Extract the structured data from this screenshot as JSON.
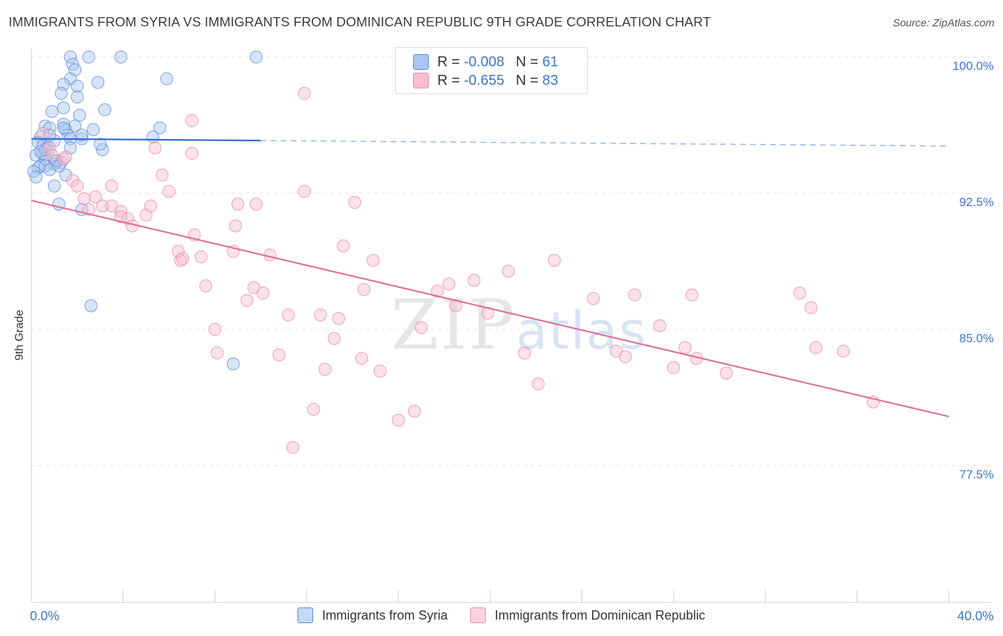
{
  "title": "IMMIGRANTS FROM SYRIA VS IMMIGRANTS FROM DOMINICAN REPUBLIC 9TH GRADE CORRELATION CHART",
  "source": "Source: ZipAtlas.com",
  "watermark": {
    "zip": "ZIP",
    "atlas": "atlas"
  },
  "legend_top": [
    {
      "r_label": "R = ",
      "r_value": "-0.008",
      "n_label": "N = ",
      "n_value": "61"
    },
    {
      "r_label": "R = ",
      "r_value": "-0.655",
      "n_label": "N = ",
      "n_value": "83"
    }
  ],
  "colors": {
    "syria_fill": "#a9c6f0",
    "syria_stroke": "#5b8fd8",
    "syria_line": "#2f6fd0",
    "dr_fill": "#f7bfd0",
    "dr_stroke": "#e88aa6",
    "dr_line": "#e0709a",
    "tick_label": "#3f74c9",
    "grid": "#e2e2e2"
  },
  "chart_data": {
    "type": "scatter",
    "title": "IMMIGRANTS FROM SYRIA VS IMMIGRANTS FROM DOMINICAN REPUBLIC 9TH GRADE CORRELATION CHART",
    "xlabel": "",
    "ylabel": "9th Grade",
    "xlim": [
      0,
      40
    ],
    "ylim": [
      70,
      101.3
    ],
    "x_tick_labels": [
      {
        "value": 0,
        "label": "0.0%"
      },
      {
        "value": 40,
        "label": "40.0%"
      }
    ],
    "y_tick_labels": [
      {
        "value": 100,
        "label": "100.0%"
      },
      {
        "value": 92.5,
        "label": "92.5%"
      },
      {
        "value": 85,
        "label": "85.0%"
      },
      {
        "value": 77.5,
        "label": "77.5%"
      }
    ],
    "x_minor_ticks": [
      0,
      4,
      8,
      12,
      16,
      20,
      24,
      28,
      32,
      36,
      40
    ],
    "grid": true,
    "legend_placement": "top-center",
    "series": [
      {
        "name": "Immigrants from Syria",
        "r": -0.008,
        "n": 61,
        "trend": {
          "x0": 0,
          "y0": 95.5,
          "x1": 10,
          "y1": 95.4,
          "dashed_to_x": 40,
          "dashed_to_y": 95.1
        },
        "points": [
          [
            1.7,
            100
          ],
          [
            2.5,
            100
          ],
          [
            3.9,
            100
          ],
          [
            9.8,
            100
          ],
          [
            1.8,
            99.6
          ],
          [
            1.9,
            99.3
          ],
          [
            1.7,
            98.8
          ],
          [
            2.9,
            98.6
          ],
          [
            1.4,
            98.5
          ],
          [
            2.0,
            98.4
          ],
          [
            5.9,
            98.8
          ],
          [
            1.3,
            98.0
          ],
          [
            2.0,
            97.8
          ],
          [
            1.4,
            97.2
          ],
          [
            3.2,
            97.1
          ],
          [
            0.9,
            97.0
          ],
          [
            2.1,
            96.8
          ],
          [
            1.9,
            96.2
          ],
          [
            1.4,
            96.3
          ],
          [
            0.6,
            96.2
          ],
          [
            0.8,
            96.1
          ],
          [
            1.5,
            96.0
          ],
          [
            2.7,
            96.0
          ],
          [
            5.6,
            96.1
          ],
          [
            1.6,
            95.7
          ],
          [
            0.4,
            95.6
          ],
          [
            1.7,
            95.5
          ],
          [
            2.2,
            95.5
          ],
          [
            5.3,
            95.6
          ],
          [
            1.0,
            95.4
          ],
          [
            0.3,
            95.3
          ],
          [
            0.5,
            95.1
          ],
          [
            0.7,
            95.0
          ],
          [
            3.1,
            94.9
          ],
          [
            1.7,
            95.0
          ],
          [
            0.2,
            94.6
          ],
          [
            0.6,
            94.4
          ],
          [
            1.0,
            94.3
          ],
          [
            1.3,
            94.2
          ],
          [
            1.0,
            94.1
          ],
          [
            0.4,
            94.0
          ],
          [
            0.3,
            93.9
          ],
          [
            0.6,
            94.0
          ],
          [
            0.8,
            93.8
          ],
          [
            0.1,
            93.7
          ],
          [
            0.2,
            93.4
          ],
          [
            1.5,
            93.5
          ],
          [
            1.0,
            92.9
          ],
          [
            1.2,
            91.9
          ],
          [
            2.2,
            91.6
          ],
          [
            2.6,
            86.3
          ],
          [
            8.8,
            83.1
          ],
          [
            3.0,
            95.2
          ],
          [
            0.5,
            94.7
          ],
          [
            1.1,
            94.3
          ],
          [
            0.6,
            94.9
          ],
          [
            1.4,
            96.1
          ],
          [
            2.2,
            95.7
          ],
          [
            0.8,
            95.7
          ],
          [
            1.2,
            94.0
          ],
          [
            0.4,
            94.8
          ]
        ]
      },
      {
        "name": "Immigrants from Dominican Republic",
        "r": -0.655,
        "n": 83,
        "trend": {
          "x0": 0,
          "y0": 92.1,
          "x1": 40,
          "y1": 80.2
        },
        "points": [
          [
            0.5,
            95.8
          ],
          [
            0.8,
            95.0
          ],
          [
            0.9,
            94.6
          ],
          [
            1.4,
            94.4
          ],
          [
            1.8,
            93.2
          ],
          [
            2.0,
            92.9
          ],
          [
            2.3,
            92.2
          ],
          [
            2.8,
            92.3
          ],
          [
            3.1,
            91.8
          ],
          [
            3.5,
            92.9
          ],
          [
            3.5,
            91.8
          ],
          [
            3.9,
            91.5
          ],
          [
            4.2,
            91.1
          ],
          [
            4.4,
            90.7
          ],
          [
            5.0,
            91.3
          ],
          [
            5.2,
            91.8
          ],
          [
            5.4,
            95.0
          ],
          [
            5.7,
            93.5
          ],
          [
            6.0,
            92.6
          ],
          [
            6.4,
            89.3
          ],
          [
            6.5,
            88.8
          ],
          [
            6.6,
            88.9
          ],
          [
            7.0,
            94.7
          ],
          [
            7.0,
            96.5
          ],
          [
            7.1,
            90.2
          ],
          [
            7.4,
            89.0
          ],
          [
            7.6,
            87.4
          ],
          [
            8.0,
            85.0
          ],
          [
            8.1,
            83.7
          ],
          [
            8.8,
            89.3
          ],
          [
            8.9,
            90.7
          ],
          [
            9.0,
            91.9
          ],
          [
            9.4,
            86.6
          ],
          [
            9.7,
            87.3
          ],
          [
            9.8,
            91.9
          ],
          [
            10.1,
            87.0
          ],
          [
            10.4,
            89.1
          ],
          [
            10.8,
            83.6
          ],
          [
            11.2,
            85.8
          ],
          [
            11.4,
            78.5
          ],
          [
            11.9,
            92.6
          ],
          [
            11.9,
            98.0
          ],
          [
            12.3,
            80.6
          ],
          [
            12.6,
            85.8
          ],
          [
            12.8,
            82.8
          ],
          [
            13.2,
            84.5
          ],
          [
            13.4,
            85.6
          ],
          [
            13.6,
            89.6
          ],
          [
            14.1,
            92.0
          ],
          [
            14.4,
            83.4
          ],
          [
            14.5,
            87.2
          ],
          [
            14.9,
            88.8
          ],
          [
            15.2,
            82.7
          ],
          [
            16.0,
            80.0
          ],
          [
            16.7,
            80.5
          ],
          [
            17.0,
            85.1
          ],
          [
            17.7,
            87.1
          ],
          [
            18.2,
            87.5
          ],
          [
            18.5,
            86.3
          ],
          [
            19.3,
            87.7
          ],
          [
            19.9,
            85.9
          ],
          [
            20.8,
            88.2
          ],
          [
            21.5,
            83.7
          ],
          [
            22.1,
            82.0
          ],
          [
            22.8,
            88.8
          ],
          [
            24.5,
            86.7
          ],
          [
            25.5,
            83.8
          ],
          [
            25.9,
            83.5
          ],
          [
            26.3,
            86.9
          ],
          [
            27.4,
            85.2
          ],
          [
            28.0,
            82.9
          ],
          [
            28.5,
            84.0
          ],
          [
            28.8,
            86.9
          ],
          [
            29.0,
            83.4
          ],
          [
            30.3,
            82.6
          ],
          [
            33.5,
            87.0
          ],
          [
            34.0,
            86.2
          ],
          [
            34.2,
            84.0
          ],
          [
            35.4,
            83.8
          ],
          [
            36.7,
            81.0
          ],
          [
            1.5,
            94.5
          ],
          [
            2.5,
            91.6
          ],
          [
            3.9,
            91.2
          ]
        ]
      }
    ]
  }
}
